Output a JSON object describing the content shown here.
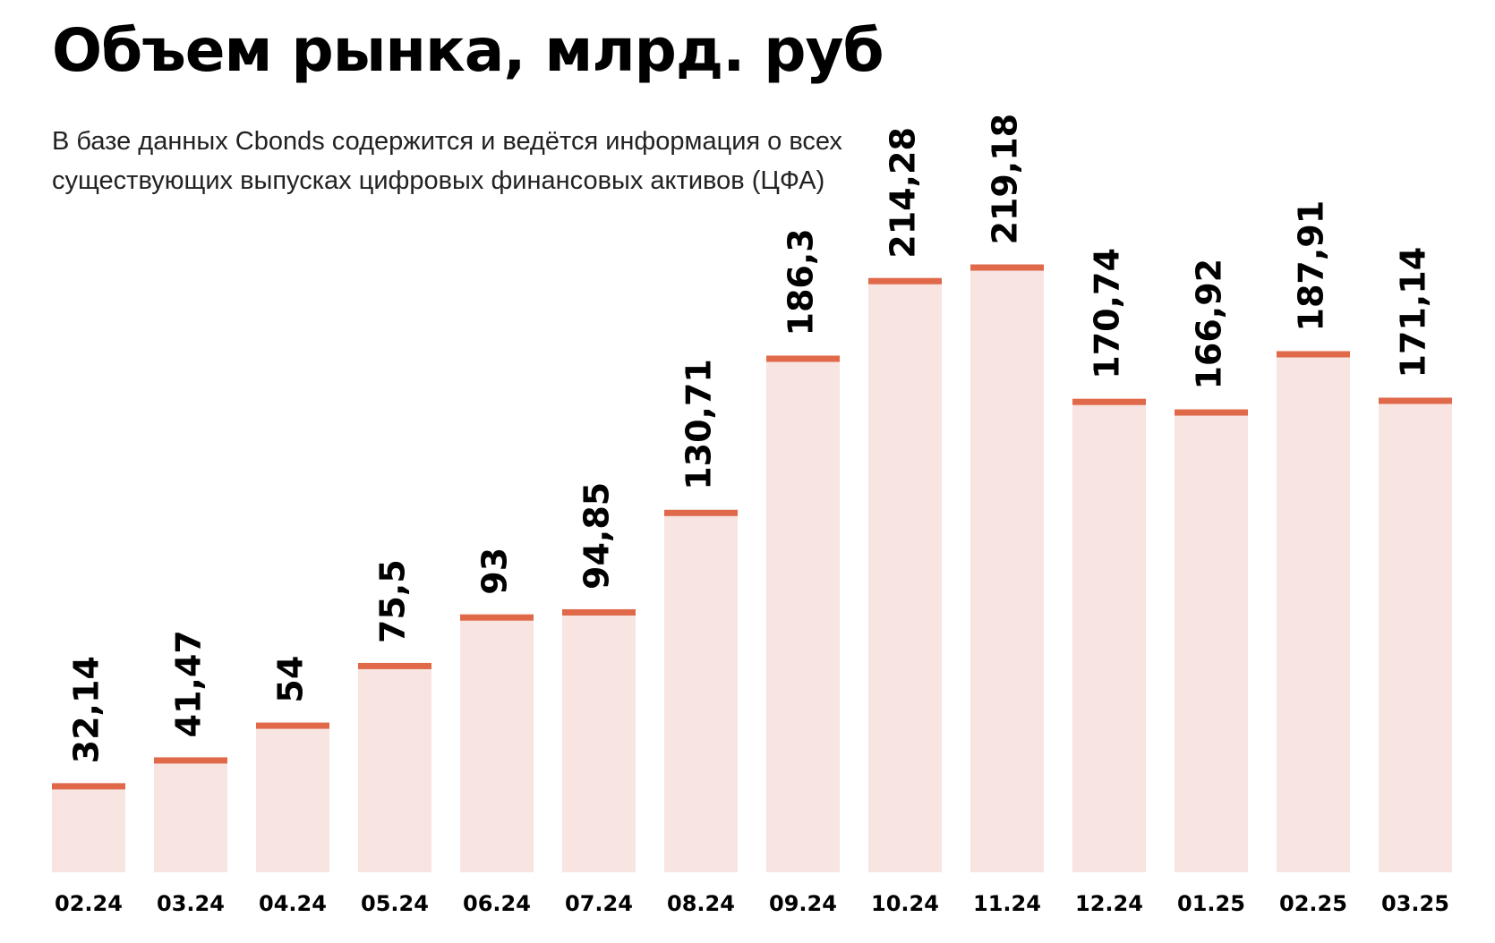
{
  "title": "Объем рынка, млрд. руб",
  "subtitle": "В базе данных Cbonds содержится и ведётся информация о всех существующих выпусках цифровых финансовых активов (ЦФА)",
  "colors": {
    "bar_fill": "#f8e4e1",
    "bar_cap": "#e0694a",
    "text": "#000000"
  },
  "chart_data": {
    "type": "bar",
    "title": "Объем рынка, млрд. руб",
    "xlabel": "",
    "ylabel": "",
    "ylim": [
      0,
      260
    ],
    "grid": false,
    "categories": [
      "02.24",
      "03.24",
      "04.24",
      "05.24",
      "06.24",
      "07.24",
      "08.24",
      "09.24",
      "10.24",
      "11.24",
      "12.24",
      "01.25",
      "02.25",
      "03.25"
    ],
    "values": [
      32.14,
      41.47,
      54,
      75.5,
      93,
      94.85,
      130.71,
      186.3,
      214.28,
      219.18,
      170.74,
      166.92,
      187.91,
      171.14
    ],
    "value_labels": [
      "32,14",
      "41,47",
      "54",
      "75,5",
      "93",
      "94,85",
      "130,71",
      "186,3",
      "214,28",
      "219,18",
      "170,74",
      "166,92",
      "187,91",
      "171,14"
    ]
  }
}
